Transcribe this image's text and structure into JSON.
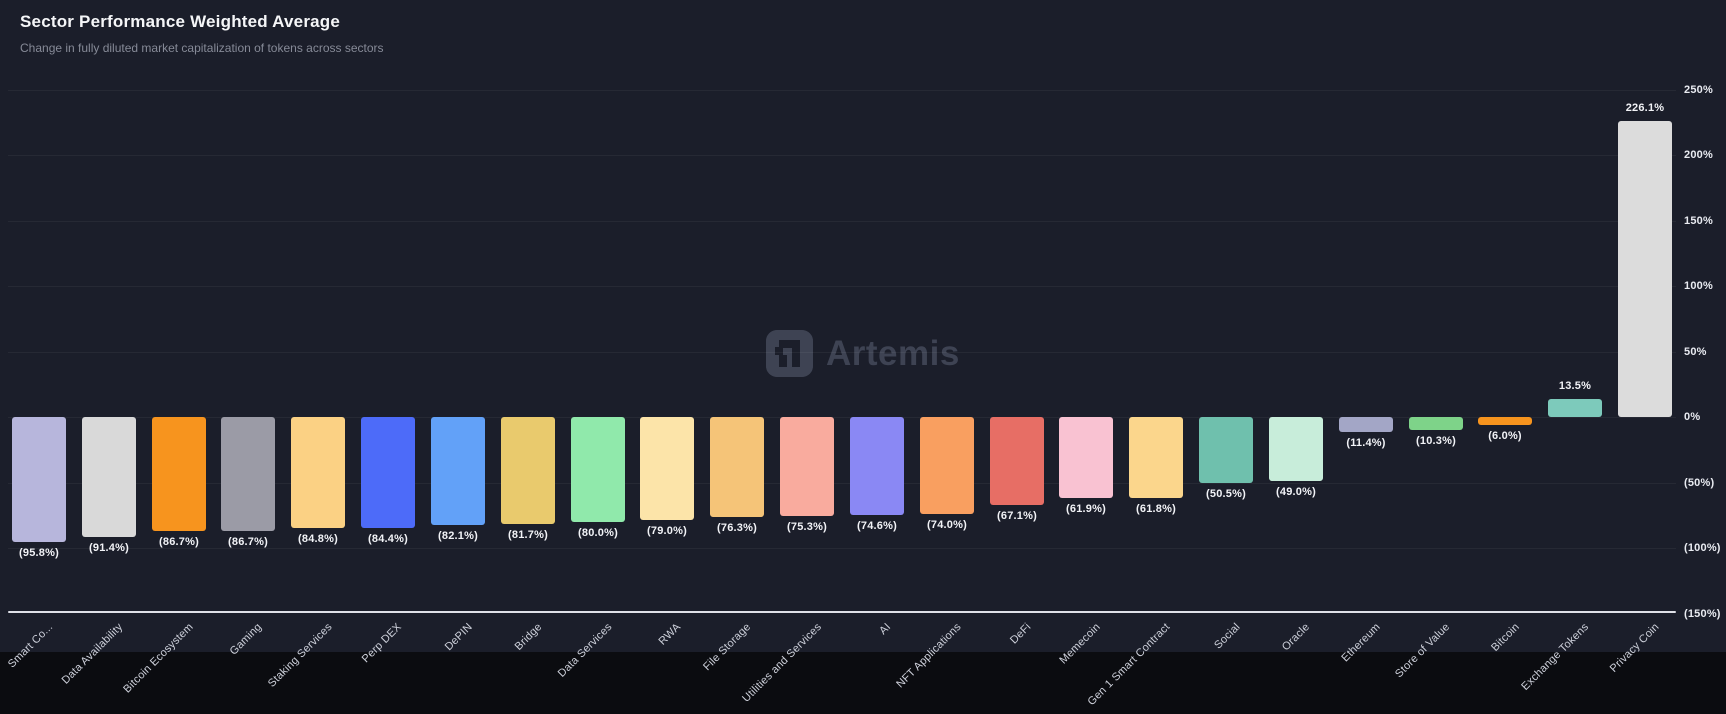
{
  "header": {
    "title": "Sector Performance Weighted Average",
    "subtitle": "Change in fully diluted market capitalization of tokens across sectors"
  },
  "watermark": {
    "brand": "Artemis"
  },
  "colors": {
    "background": "#1b1e2a",
    "page_bottom": "#0b0c10",
    "title": "#f5f6f8",
    "subtitle": "#868a97",
    "grid": "rgba(255,255,255,0.05)",
    "axis_line": "#dfe1e8",
    "tick_label": "#e9ebf1",
    "value_label": "#f2f3f7",
    "category_label": "#ced1db",
    "watermark": "#3e4353"
  },
  "chart_data": {
    "type": "bar",
    "title": "Sector Performance Weighted Average",
    "subtitle": "Change in fully diluted market capitalization of tokens across sectors",
    "unit": "%",
    "negative_format": "parentheses",
    "grid": "horizontal-faint",
    "categories": [
      "Smart Co...",
      "Data Availability",
      "Bitcoin Ecosystem",
      "Gaming",
      "Staking Services",
      "Perp DEX",
      "DePIN",
      "Bridge",
      "Data Services",
      "RWA",
      "File Storage",
      "Utilities and Services",
      "AI",
      "NFT Applications",
      "DeFi",
      "Memecoin",
      "Gen 1 Smart Contract",
      "Social",
      "Oracle",
      "Ethereum",
      "Store of Value",
      "Bitcoin",
      "Exchange Tokens",
      "Privacy Coin"
    ],
    "values": [
      -95.8,
      -91.4,
      -86.7,
      -86.7,
      -84.8,
      -84.4,
      -82.1,
      -81.7,
      -80.0,
      -79.0,
      -76.3,
      -75.3,
      -74.6,
      -74.0,
      -67.1,
      -61.9,
      -61.8,
      -50.5,
      -49.0,
      -11.4,
      -10.3,
      -6.0,
      13.5,
      226.1
    ],
    "value_labels": [
      "(95.8%)",
      "(91.4%)",
      "(86.7%)",
      "(86.7%)",
      "(84.8%)",
      "(84.4%)",
      "(82.1%)",
      "(81.7%)",
      "(80.0%)",
      "(79.0%)",
      "(76.3%)",
      "(75.3%)",
      "(74.6%)",
      "(74.0%)",
      "(67.1%)",
      "(61.9%)",
      "(61.8%)",
      "(50.5%)",
      "(49.0%)",
      "(11.4%)",
      "(10.3%)",
      "(6.0%)",
      "13.5%",
      "226.1%"
    ],
    "bar_colors": [
      "#b7b6dc",
      "#d9d9d9",
      "#f7941e",
      "#9b9ba6",
      "#fbd184",
      "#4d6bf9",
      "#62a1f8",
      "#e9ca6d",
      "#90e9ab",
      "#fce4a9",
      "#f5c478",
      "#f9ab9e",
      "#8a88f4",
      "#f99f60",
      "#e76e65",
      "#f9c2d2",
      "#fbd68c",
      "#6fc0ad",
      "#c8edda",
      "#a3a6c6",
      "#7ed389",
      "#f7941e",
      "#7dcabb",
      "#dcdcdc"
    ],
    "y_axis": {
      "side": "right",
      "tick_values": [
        250,
        200,
        150,
        100,
        50,
        0,
        -50,
        -100,
        -150
      ],
      "tick_labels": [
        "250%",
        "200%",
        "150%",
        "100%",
        "50%",
        "0%",
        "(50%)",
        "(100%)",
        "(150%)"
      ],
      "ylim": [
        -150,
        250
      ]
    },
    "x_axis": {
      "label_rotation_deg": -45
    }
  }
}
